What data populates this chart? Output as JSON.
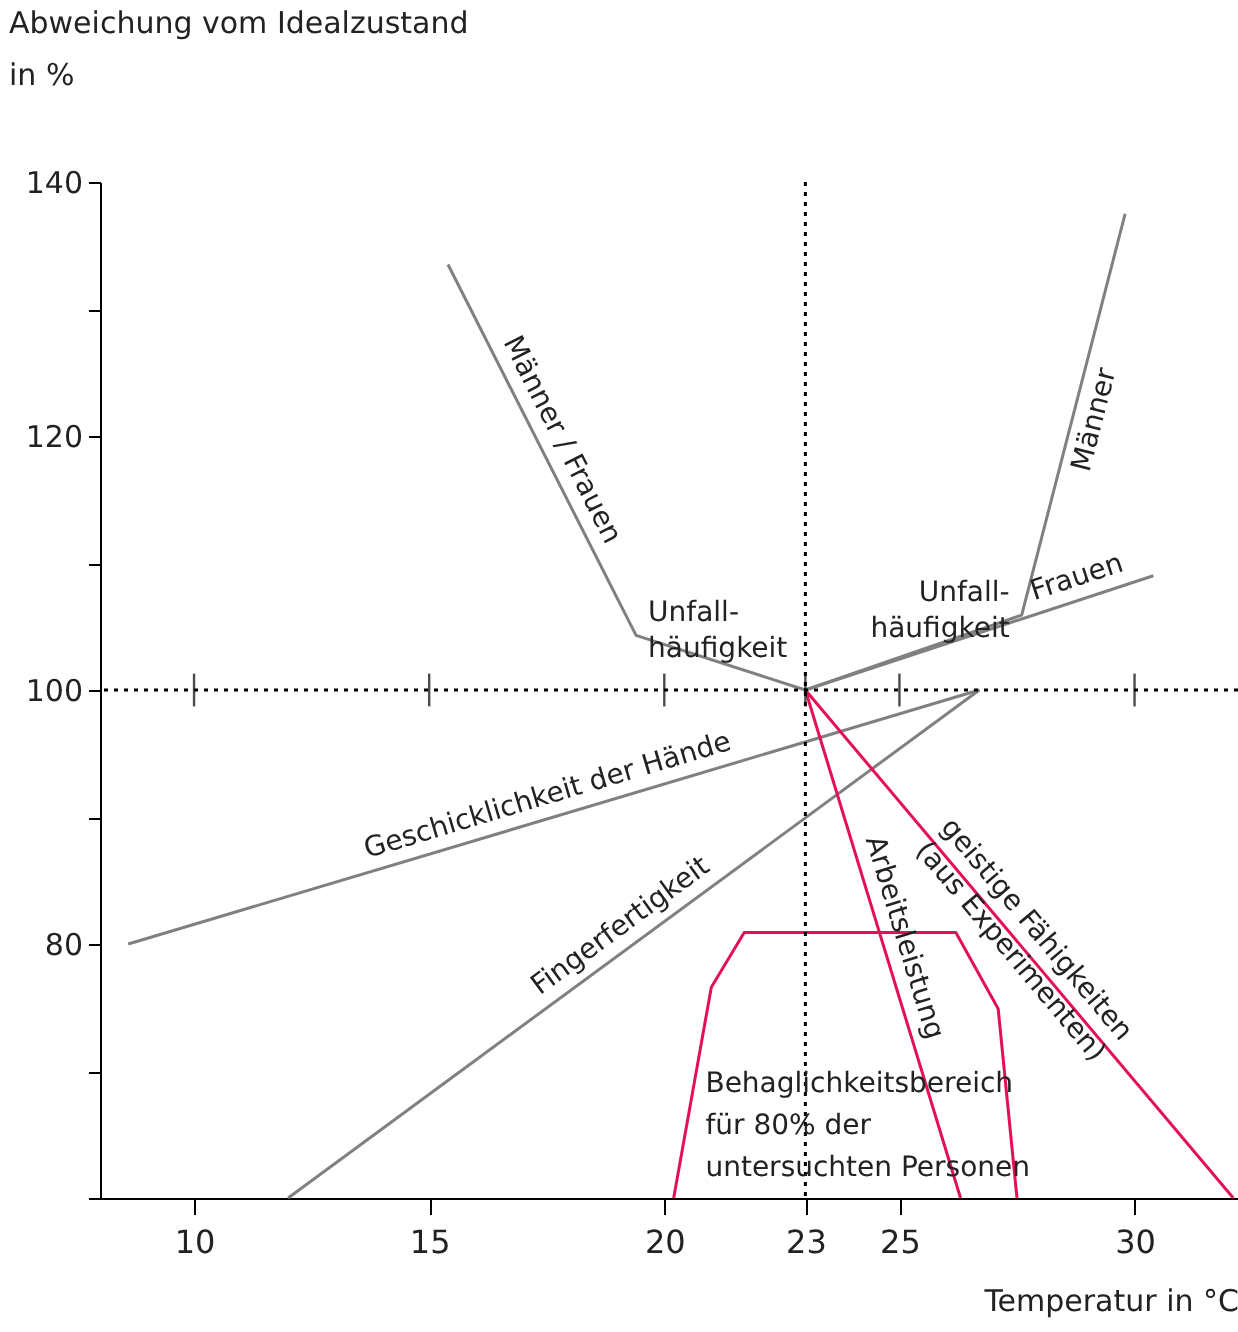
{
  "chart_data": {
    "type": "line",
    "xlabel": "Temperatur in °C",
    "ylabel": "Abweichung vom Idealzustand\nin %",
    "xlim": [
      8,
      32.2
    ],
    "ylim": [
      60,
      140
    ],
    "xticks": [
      10,
      15,
      20,
      23,
      25,
      30
    ],
    "yticks": [
      {
        "value": 60,
        "label": null
      },
      {
        "value": 70,
        "label": null
      },
      80,
      {
        "value": 90,
        "label": null
      },
      100,
      {
        "value": 110,
        "label": null
      },
      120,
      {
        "value": 130,
        "label": null
      },
      140
    ],
    "series": [
      {
        "name": "Männer / Frauen",
        "color": "#808080",
        "x": [
          15.4,
          19.4,
          23
        ],
        "values": [
          133.5,
          104.3,
          100
        ]
      },
      {
        "name": "Männer",
        "color": "#808080",
        "x": [
          23,
          27.6,
          29.8
        ],
        "values": [
          100,
          105.9,
          137.5
        ]
      },
      {
        "name": "Frauen",
        "color": "#808080",
        "x": [
          23,
          30.4
        ],
        "values": [
          100,
          109
        ]
      },
      {
        "name": "Geschicklichkeit der Hände",
        "color": "#808080",
        "x": [
          8.6,
          26.7
        ],
        "values": [
          80,
          100
        ]
      },
      {
        "name": "Fingerfertigkeit",
        "color": "#808080",
        "x": [
          12,
          26.7
        ],
        "values": [
          60,
          100
        ]
      },
      {
        "name": "Arbeitsleistung",
        "color": "#e30f59",
        "x": [
          23,
          26.3
        ],
        "values": [
          100,
          60
        ]
      },
      {
        "name": "geistige Fähigkeiten\n(aus Experimenten)",
        "color": "#e30f59",
        "x": [
          23,
          32.1
        ],
        "values": [
          100,
          60
        ]
      },
      {
        "color": "#e30f59",
        "x": [
          20.2,
          21,
          21.7,
          26.2,
          27.1,
          27.5
        ],
        "values": [
          60,
          76.6,
          80.9,
          80.9,
          74.9,
          60
        ]
      }
    ],
    "ref_lines": [
      {
        "axis": "x",
        "value": 23,
        "line_style": "dotted"
      },
      {
        "axis": "y",
        "value": 100,
        "line_style": "dotted"
      }
    ],
    "annotations": [
      {
        "text": "Unfall-\nhäufigkeit",
        "x": 19.4,
        "y": 104.3
      },
      {
        "text": "Unfall-\nhäufigkeit",
        "x": 27.6,
        "y": 105.9
      },
      "Behaglichkeitsbereich\nfür 80% der\nuntersuchten Personen"
    ]
  }
}
